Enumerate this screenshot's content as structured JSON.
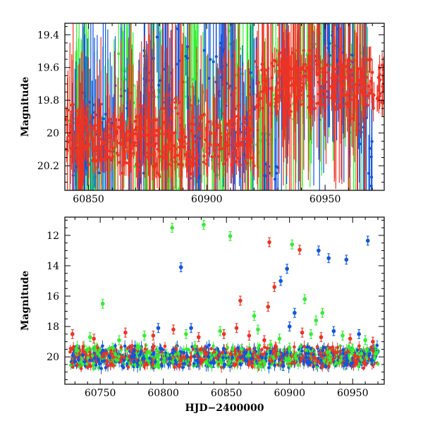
{
  "colors": {
    "green": "#33ee33",
    "blue": "#1155dd",
    "red": "#ee3322",
    "black": "#000000"
  },
  "chart_data": [
    {
      "type": "scatter",
      "xlabel": "",
      "ylabel": "Magnitude",
      "xlim": [
        60840,
        60975
      ],
      "ylim": [
        19.33,
        20.35
      ],
      "y_inverted": true,
      "grid": false,
      "x_ticks": [
        60850,
        60900,
        60950
      ],
      "x_tick_labels": [
        "60850",
        "60900",
        "60950"
      ],
      "y_ticks": [
        19.4,
        19.6,
        19.8,
        20,
        20.2
      ],
      "y_tick_labels": [
        "19.4",
        "19.6",
        "19.8",
        "20",
        "20.2"
      ],
      "series": [
        {
          "color": "green",
          "points": [
            [
              60842,
              20.05
            ],
            [
              60848,
              19.95
            ],
            [
              60853,
              20.18
            ],
            [
              60858,
              20.1
            ],
            [
              60866,
              19.7
            ],
            [
              60872,
              20.02
            ],
            [
              60879,
              19.9
            ],
            [
              60886,
              20.22
            ],
            [
              60893,
              19.62
            ],
            [
              60899,
              19.85
            ],
            [
              60905,
              20.12
            ],
            [
              60911,
              19.52
            ],
            [
              60918,
              19.78
            ],
            [
              60924,
              20.05
            ],
            [
              60931,
              19.66
            ],
            [
              60937,
              19.74
            ],
            [
              60944,
              19.58
            ],
            [
              60950,
              19.5
            ],
            [
              60956,
              19.6
            ],
            [
              60962,
              19.82
            ],
            [
              60968,
              19.7
            ]
          ]
        },
        {
          "color": "blue",
          "points": [
            [
              60843,
              20.1
            ],
            [
              60850,
              19.95
            ],
            [
              60857,
              20.05
            ],
            [
              60864,
              19.8
            ],
            [
              60870,
              20.15
            ],
            [
              60877,
              19.6
            ],
            [
              60883,
              19.75
            ],
            [
              60889,
              19.45
            ],
            [
              60895,
              20.2
            ],
            [
              60901,
              19.5
            ],
            [
              60908,
              19.65
            ],
            [
              60914,
              20.0
            ],
            [
              60921,
              19.7
            ],
            [
              60927,
              20.25
            ],
            [
              60934,
              19.6
            ],
            [
              60940,
              19.55
            ],
            [
              60946,
              19.75
            ],
            [
              60953,
              19.45
            ],
            [
              60959,
              19.62
            ],
            [
              60965,
              19.9
            ],
            [
              60970,
              20.2
            ]
          ]
        },
        {
          "color": "red",
          "points": [
            [
              60841,
              20.02
            ],
            [
              60844,
              19.92
            ],
            [
              60847,
              20.12
            ],
            [
              60851,
              20.08
            ],
            [
              60854,
              20.0
            ],
            [
              60857,
              19.98
            ],
            [
              60860,
              20.15
            ],
            [
              60863,
              20.05
            ],
            [
              60867,
              19.95
            ],
            [
              60870,
              20.1
            ],
            [
              60873,
              20.0
            ],
            [
              60876,
              19.9
            ],
            [
              60879,
              20.08
            ],
            [
              60882,
              20.02
            ],
            [
              60885,
              19.96
            ],
            [
              60889,
              19.85
            ],
            [
              60892,
              19.98
            ],
            [
              60895,
              20.05
            ],
            [
              60898,
              19.9
            ],
            [
              60901,
              20.05
            ],
            [
              60904,
              19.95
            ],
            [
              60907,
              19.75
            ],
            [
              60910,
              19.88
            ],
            [
              60913,
              19.8
            ],
            [
              60916,
              20.0
            ],
            [
              60919,
              19.92
            ],
            [
              60922,
              19.82
            ],
            [
              60925,
              19.75
            ],
            [
              60928,
              19.7
            ],
            [
              60931,
              19.66
            ],
            [
              60934,
              19.72
            ],
            [
              60937,
              19.68
            ],
            [
              60940,
              19.6
            ],
            [
              60943,
              19.62
            ],
            [
              60946,
              19.55
            ],
            [
              60949,
              19.58
            ],
            [
              60952,
              19.6
            ],
            [
              60955,
              19.66
            ],
            [
              60958,
              19.7
            ],
            [
              60961,
              19.75
            ],
            [
              60964,
              19.8
            ],
            [
              60967,
              19.76
            ]
          ]
        }
      ]
    },
    {
      "type": "scatter",
      "xlabel": "HJD−2400000",
      "ylabel": "Magnitude",
      "xlim": [
        60722,
        60975
      ],
      "ylim": [
        10.8,
        21.8
      ],
      "y_inverted": true,
      "grid": false,
      "x_ticks": [
        60750,
        60800,
        60850,
        60900,
        60950
      ],
      "x_tick_labels": [
        "60750",
        "60800",
        "60850",
        "60900",
        "60950"
      ],
      "y_ticks": [
        12,
        14,
        16,
        18,
        20
      ],
      "y_tick_labels": [
        "12",
        "14",
        "16",
        "18",
        "20"
      ],
      "series": [
        {
          "color": "green",
          "points": [
            [
              60807,
              11.5
            ],
            [
              60832,
              11.3
            ],
            [
              60853,
              12.05
            ],
            [
              60902,
              12.6
            ],
            [
              60752,
              16.5
            ],
            [
              60872,
              17.3
            ],
            [
              60912,
              16.2
            ],
            [
              60921,
              17.6
            ],
            [
              60926,
              17.1
            ],
            [
              60742,
              18.7
            ],
            [
              60765,
              18.9
            ],
            [
              60785,
              18.6
            ],
            [
              60818,
              18.5
            ],
            [
              60845,
              18.3
            ],
            [
              60875,
              18.2
            ],
            [
              60892,
              18.8
            ],
            [
              60917,
              18.5
            ],
            [
              60942,
              18.6
            ],
            [
              60960,
              18.9
            ],
            [
              60732,
              19.6
            ],
            [
              60760,
              19.4
            ],
            [
              60795,
              19.6
            ],
            [
              60825,
              19.3
            ],
            [
              60862,
              19.5
            ],
            [
              60885,
              19.2
            ],
            [
              60900,
              19.4
            ],
            [
              60930,
              19.7
            ],
            [
              60950,
              19.5
            ],
            [
              60968,
              19.8
            ]
          ]
        },
        {
          "color": "blue",
          "points": [
            [
              60814,
              14.1
            ],
            [
              60893,
              15.0
            ],
            [
              60898,
              14.2
            ],
            [
              60904,
              17.1
            ],
            [
              60923,
              13.0
            ],
            [
              60931,
              13.5
            ],
            [
              60945,
              13.6
            ],
            [
              60962,
              12.35
            ],
            [
              60822,
              18.1
            ],
            [
              60796,
              18.1
            ],
            [
              60900,
              18.0
            ],
            [
              60935,
              18.3
            ],
            [
              60955,
              18.5
            ],
            [
              60730,
              20.3
            ],
            [
              60775,
              20.0
            ],
            [
              60805,
              20.1
            ],
            [
              60840,
              20.4
            ],
            [
              60870,
              20.1
            ],
            [
              60895,
              20.6
            ],
            [
              60915,
              20.3
            ],
            [
              60945,
              20.5
            ],
            [
              60965,
              20.2
            ]
          ]
        },
        {
          "color": "red",
          "points": [
            [
              60884,
              12.45
            ],
            [
              60908,
              12.95
            ],
            [
              60888,
              15.4
            ],
            [
              60883,
              16.7
            ],
            [
              60861,
              16.3
            ],
            [
              60728,
              18.5
            ],
            [
              60745,
              18.8
            ],
            [
              60770,
              18.4
            ],
            [
              60792,
              18.6
            ],
            [
              60808,
              18.2
            ],
            [
              60828,
              18.7
            ],
            [
              60848,
              18.5
            ],
            [
              60858,
              18.1
            ],
            [
              60868,
              18.6
            ],
            [
              60880,
              18.9
            ],
            [
              60910,
              18.4
            ],
            [
              60925,
              18.7
            ],
            [
              60948,
              18.8
            ],
            [
              60966,
              19.0
            ]
          ]
        }
      ]
    }
  ]
}
